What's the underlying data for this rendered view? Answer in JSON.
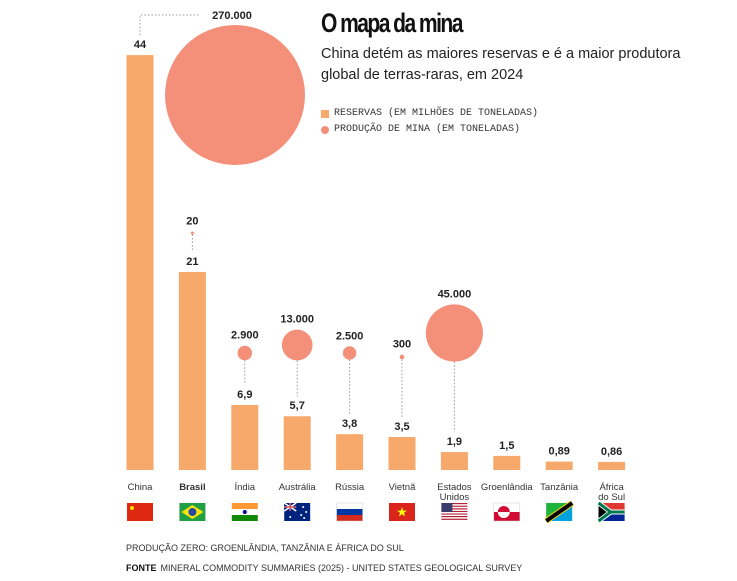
{
  "chart_data": {
    "type": "bar",
    "title": "O mapa da mina",
    "subtitle": "China detém as maiores reservas e é a maior produtora global de terras-raras, em 2024",
    "legend": [
      {
        "name": "RESERVAS (EM MILHÕES DE TONELADAS)",
        "shape": "square",
        "color": "#f7a96b"
      },
      {
        "name": "PRODUÇÃO DE MINA (EM TONELADAS)",
        "shape": "circle",
        "color": "#f4907a"
      }
    ],
    "categories": [
      "China",
      "Brasil",
      "Índia",
      "Austrália",
      "Rússia",
      "Vietnã",
      "Estados Unidos",
      "Groenlândia",
      "Tanzânia",
      "África do Sul"
    ],
    "series": [
      {
        "name": "Reservas (milhões de toneladas)",
        "values": [
          44,
          21,
          6.9,
          5.7,
          3.8,
          3.5,
          1.9,
          1.5,
          0.89,
          0.86
        ],
        "labels": [
          "44",
          "21",
          "6,9",
          "5,7",
          "3,8",
          "3,5",
          "1,9",
          "1,5",
          "0,89",
          "0,86"
        ]
      },
      {
        "name": "Produção de mina (toneladas)",
        "values": [
          270000,
          20,
          2900,
          13000,
          2500,
          300,
          45000,
          0,
          0,
          0
        ],
        "labels": [
          "270.000",
          "20",
          "2.900",
          "13.000",
          "2.500",
          "300",
          "45.000",
          "",
          "",
          ""
        ]
      }
    ],
    "flags": [
      "cn",
      "br",
      "in",
      "au",
      "ru",
      "vn",
      "us",
      "gl",
      "tz",
      "za"
    ],
    "highlight": "Brasil",
    "colors": {
      "bar": "#f7a96b",
      "bubble": "#f4907a"
    },
    "note": "PRODUÇÃO ZERO: GROENLÂNDIA, TANZÂNIA E ÁFRICA DO SUL",
    "source_label": "FONTE",
    "source": "MINERAL COMMODITY SUMMARIES (2025) - UNITED STATES GEOLOGICAL SURVEY"
  }
}
